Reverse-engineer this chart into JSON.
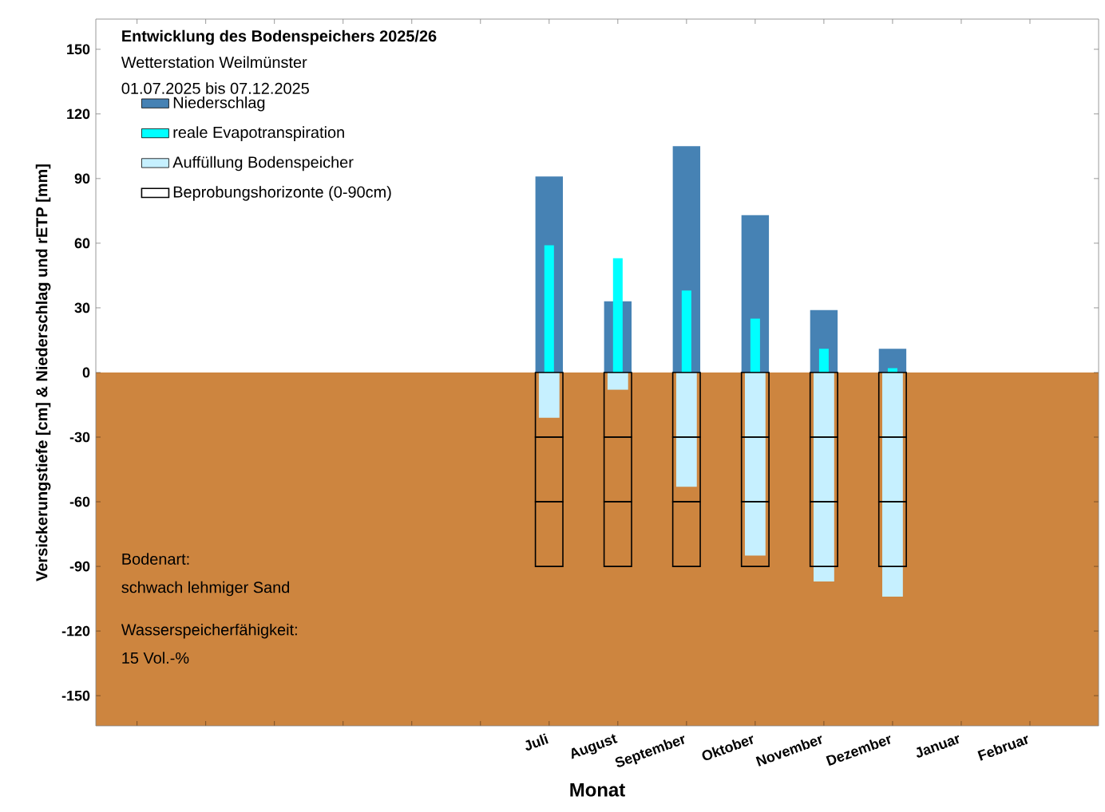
{
  "chart_data": {
    "type": "bar",
    "title": "Entwicklung des Bodenspeichers 2025/26",
    "subtitle": "Wetterstation Weilmünster",
    "xlabel": "Monat",
    "ylabel": "Versickerungstiefe [cm]   &   Niederschlag und rETP [mm]",
    "annotations": [
      "01.07.2025 bis 07.12.2025",
      "Bodenart:",
      "schwach lehmiger Sand",
      "Wasserspeicherfähigkeit:",
      "15 Vol.-%"
    ],
    "categories": [
      null,
      null,
      null,
      null,
      null,
      null,
      "Juli",
      "August",
      "September",
      "Oktober",
      "November",
      "Dezember",
      "Januar",
      "Februar"
    ],
    "series": [
      {
        "name": "Niederschlag",
        "color": "#4682b4",
        "values": [
          null,
          null,
          null,
          null,
          null,
          null,
          91,
          33,
          105,
          73,
          29,
          11,
          null,
          null
        ]
      },
      {
        "name": "reale Evapotranspiration",
        "color": "#00ffff",
        "values": [
          null,
          null,
          null,
          null,
          null,
          null,
          59,
          53,
          38,
          25,
          11,
          2,
          null,
          null
        ]
      },
      {
        "name": "Auffüllung Bodenspeicher",
        "color": "#c6f0ff",
        "values": [
          null,
          null,
          null,
          null,
          null,
          null,
          -21,
          -8,
          -53,
          -85,
          -97,
          -104,
          null,
          null
        ]
      },
      {
        "name": "Beprobungshorizonte (0-90cm)",
        "color": "#000000",
        "values": [
          null,
          null,
          null,
          null,
          null,
          null,
          -30,
          -30,
          -30,
          -30,
          -30,
          -30,
          null,
          null
        ],
        "base": [
          null,
          null,
          null,
          null,
          null,
          null,
          0,
          0,
          0,
          0,
          0,
          0,
          null,
          null
        ]
      },
      {
        "color": "#000000",
        "values": [
          null,
          null,
          null,
          null,
          null,
          null,
          -30,
          -30,
          -30,
          -30,
          -30,
          -30,
          null,
          null
        ],
        "base": [
          null,
          null,
          null,
          null,
          null,
          null,
          -30,
          -30,
          -30,
          -30,
          -30,
          -30,
          null,
          null
        ]
      },
      {
        "color": "#000000",
        "values": [
          null,
          null,
          null,
          null,
          null,
          null,
          -30,
          -30,
          -30,
          -30,
          -30,
          -30,
          null,
          null
        ],
        "base": [
          null,
          null,
          null,
          null,
          null,
          null,
          -60,
          -60,
          -60,
          -60,
          -60,
          -60,
          null,
          null
        ]
      }
    ],
    "bands": [
      {
        "axis": "y",
        "from": -164,
        "to": 0,
        "color": "#cd853f"
      }
    ],
    "ylim": [
      -164,
      164
    ],
    "yticks": [
      -150,
      -120,
      -90,
      -60,
      -30,
      0,
      30,
      60,
      90,
      120,
      150
    ],
    "legend": "top left"
  }
}
